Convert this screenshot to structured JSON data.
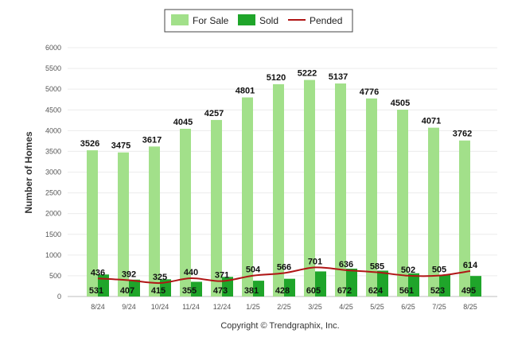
{
  "chart_data": {
    "type": "bar",
    "categories": [
      "8/24",
      "9/24",
      "10/24",
      "11/24",
      "12/24",
      "1/25",
      "2/25",
      "3/25",
      "4/25",
      "5/25",
      "6/25",
      "7/25",
      "8/25"
    ],
    "series": [
      {
        "name": "For Sale",
        "type": "bar",
        "color": "#a2e08a",
        "values": [
          3526,
          3475,
          3617,
          4045,
          4257,
          4801,
          5120,
          5222,
          5137,
          4776,
          4505,
          4071,
          3762
        ]
      },
      {
        "name": "Sold",
        "type": "bar",
        "color": "#1fa52a",
        "values": [
          531,
          407,
          415,
          355,
          473,
          381,
          428,
          605,
          672,
          624,
          561,
          523,
          495
        ]
      },
      {
        "name": "Pended",
        "type": "line",
        "color": "#b01515",
        "values": [
          436,
          392,
          325,
          440,
          371,
          504,
          566,
          701,
          636,
          585,
          502,
          505,
          614
        ]
      }
    ],
    "ylabel": "Number of Homes",
    "xlabel": "",
    "ylim": [
      0,
      6000
    ],
    "yticks": [
      0,
      500,
      1000,
      1500,
      2000,
      2500,
      3000,
      3500,
      4000,
      4500,
      5000,
      5500,
      6000
    ],
    "grid": true,
    "legend_position": "top-center"
  },
  "copyright": "Copyright © Trendgraphix, Inc."
}
